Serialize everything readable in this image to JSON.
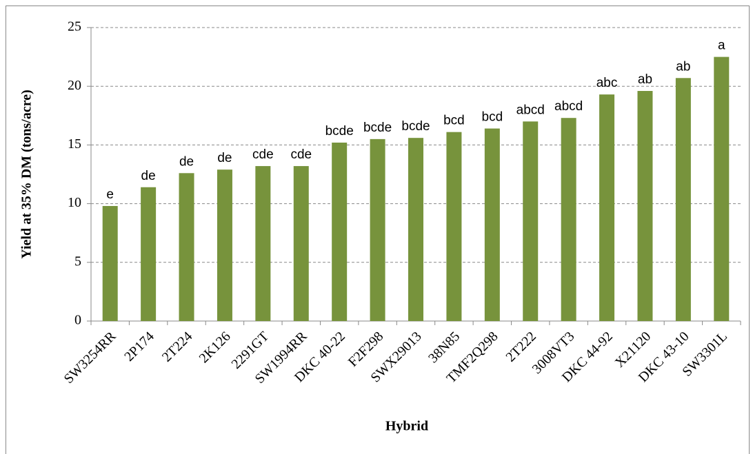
{
  "chart_data": {
    "type": "bar",
    "xlabel": "Hybrid",
    "ylabel": "Yield at 35% DM (tons/acre)",
    "categories": [
      "SW3254RR",
      "2P174",
      "2T224",
      "2K126",
      "2291GT",
      "SW1994RR",
      "DKC 40-22",
      "F2F298",
      "SWX29013",
      "38N85",
      "TMF2Q298",
      "2T222",
      "3008VT3",
      "DKC 44-92",
      "X21120",
      "DKC 43-10",
      "SW3301L"
    ],
    "values": [
      9.8,
      11.4,
      12.6,
      12.9,
      13.2,
      13.2,
      15.2,
      15.5,
      15.6,
      16.1,
      16.4,
      17.0,
      17.3,
      19.3,
      19.6,
      20.7,
      22.5
    ],
    "annotations": [
      "e",
      "de",
      "de",
      "de",
      "cde",
      "cde",
      "bcde",
      "bcde",
      "bcde",
      "bcd",
      "bcd",
      "abcd",
      "abcd",
      "abc",
      "ab",
      "ab",
      "a"
    ],
    "color": "#77933c",
    "ylim": [
      0,
      25
    ],
    "yticks": [
      0,
      5,
      10,
      15,
      20,
      25
    ],
    "grid": true
  }
}
